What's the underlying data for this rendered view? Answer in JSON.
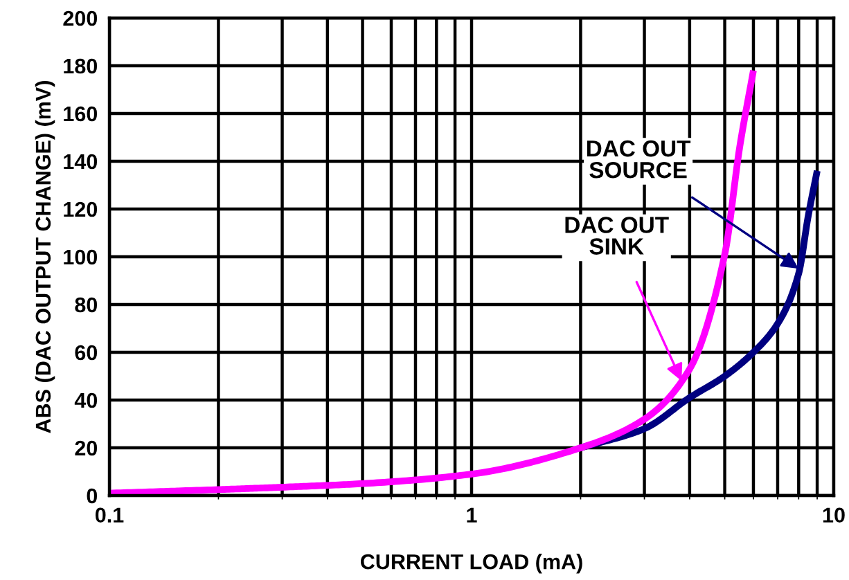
{
  "chart_data": {
    "type": "line",
    "xlabel": "CURRENT LOAD (mA)",
    "ylabel": "ABS (DAC OUTPUT CHANGE) (mV)",
    "log": "x",
    "xlim": [
      0.1,
      10
    ],
    "xticks": [
      0.1,
      1,
      10
    ],
    "ylim": [
      0,
      200
    ],
    "yticks": [
      0,
      20,
      40,
      60,
      80,
      100,
      120,
      140,
      160,
      180,
      200
    ],
    "grid": true,
    "series": [
      {
        "color": "#000080",
        "x": [
          2,
          3,
          4,
          5,
          6,
          7,
          8,
          8.5,
          9
        ],
        "values": [
          20,
          28,
          41,
          50,
          60,
          72,
          93,
          117,
          136
        ]
      },
      {
        "color": "#ff00ff",
        "x": [
          0.1,
          0.2,
          0.3,
          0.5,
          1,
          2,
          3,
          4,
          5,
          5.5,
          6
        ],
        "values": [
          1,
          2.5,
          3.5,
          5,
          9,
          20,
          32,
          53,
          101,
          146,
          178
        ]
      }
    ],
    "annotations": [
      {
        "text": "DAC OUT\nSOURCE",
        "x": 8,
        "y": 95
      },
      {
        "text": "DAC OUT\nSINK",
        "x": 3.8,
        "y": 48
      }
    ]
  }
}
